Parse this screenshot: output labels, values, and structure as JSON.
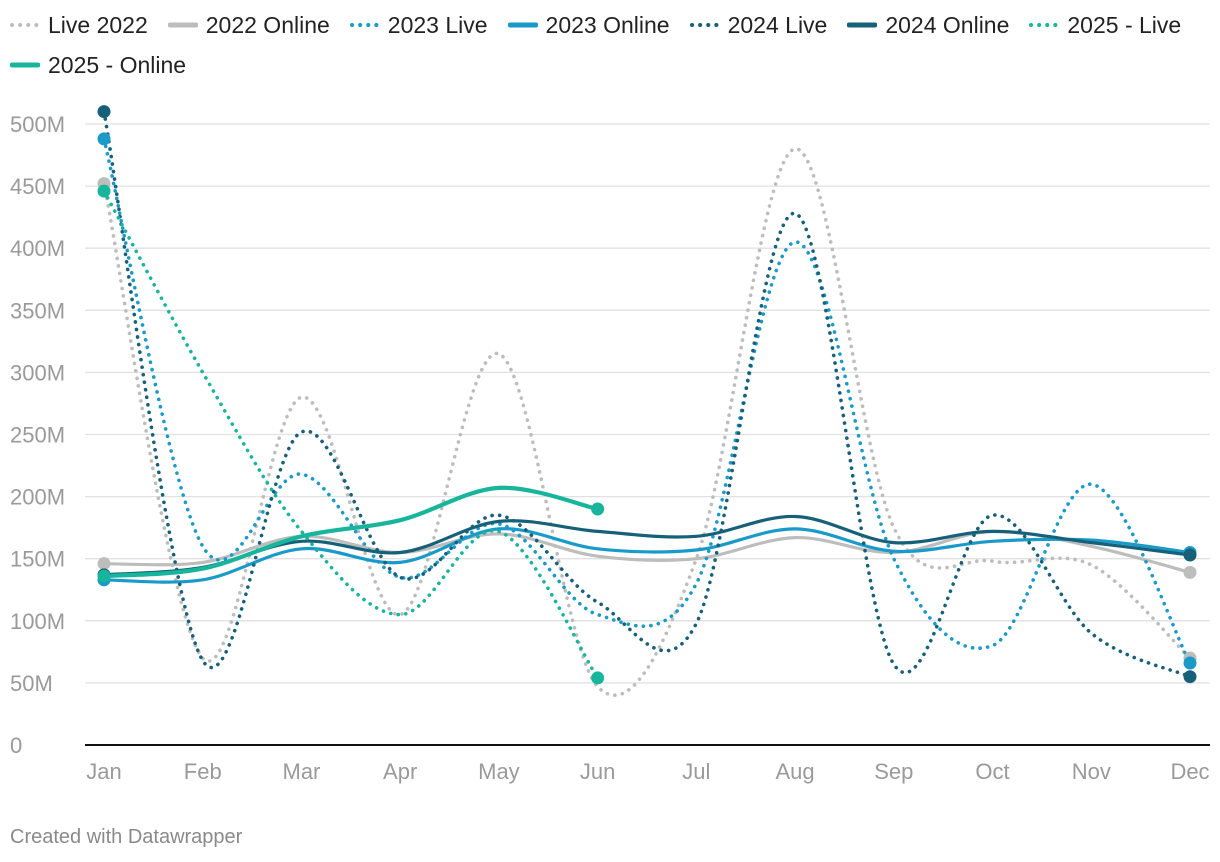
{
  "footer": {
    "credit": "Created with Datawrapper"
  },
  "chart_data": {
    "type": "line",
    "title": "",
    "xlabel": "",
    "ylabel": "",
    "categories": [
      "Jan",
      "Feb",
      "Mar",
      "Apr",
      "May",
      "Jun",
      "Jul",
      "Aug",
      "Sep",
      "Oct",
      "Nov",
      "Dec"
    ],
    "ylim": [
      0,
      500000000
    ],
    "yticks": [
      0,
      50000000,
      100000000,
      150000000,
      200000000,
      250000000,
      300000000,
      350000000,
      400000000,
      450000000,
      500000000
    ],
    "ytick_labels": [
      "0",
      "50M",
      "100M",
      "150M",
      "200M",
      "250M",
      "300M",
      "350M",
      "400M",
      "450M",
      "500M"
    ],
    "grid": true,
    "legend_position": "top",
    "series": [
      {
        "name": "Live 2022",
        "color": "#bdbdbd",
        "style": "dotted",
        "values": [
          452000000,
          70000000,
          280000000,
          105000000,
          315000000,
          47000000,
          150000000,
          480000000,
          175000000,
          148000000,
          145000000,
          70000000
        ]
      },
      {
        "name": "2022 Online",
        "color": "#bdbdbd",
        "style": "solid",
        "values": [
          146000000,
          147000000,
          168000000,
          155000000,
          170000000,
          152000000,
          150000000,
          167000000,
          155000000,
          172000000,
          160000000,
          139000000
        ]
      },
      {
        "name": "2023 Live",
        "color": "#1a9ac9",
        "style": "dotted",
        "values": [
          488000000,
          160000000,
          218000000,
          135000000,
          178000000,
          105000000,
          130000000,
          405000000,
          150000000,
          80000000,
          210000000,
          66000000
        ]
      },
      {
        "name": "2023 Online",
        "color": "#1a9ac9",
        "style": "solid",
        "values": [
          133000000,
          133000000,
          158000000,
          147000000,
          174000000,
          158000000,
          157000000,
          174000000,
          156000000,
          164000000,
          165000000,
          155000000
        ]
      },
      {
        "name": "2024 Live",
        "color": "#17607a",
        "style": "dotted",
        "values": [
          510000000,
          68000000,
          252000000,
          135000000,
          185000000,
          115000000,
          98000000,
          428000000,
          65000000,
          185000000,
          90000000,
          55000000
        ]
      },
      {
        "name": "2024 Online",
        "color": "#17607a",
        "style": "solid",
        "values": [
          137000000,
          143000000,
          164000000,
          155000000,
          180000000,
          172000000,
          168000000,
          184000000,
          163000000,
          172000000,
          163000000,
          153000000
        ]
      },
      {
        "name": "2025 - Live",
        "color": "#17b59b",
        "style": "dotted",
        "values": [
          446000000,
          300000000,
          172000000,
          105000000,
          172000000,
          54000000,
          null,
          null,
          null,
          null,
          null,
          null
        ]
      },
      {
        "name": "2025 - Online",
        "color": "#17b59b",
        "style": "solid",
        "values": [
          136000000,
          142000000,
          168000000,
          181000000,
          207000000,
          190000000,
          null,
          null,
          null,
          null,
          null,
          null
        ]
      }
    ]
  }
}
